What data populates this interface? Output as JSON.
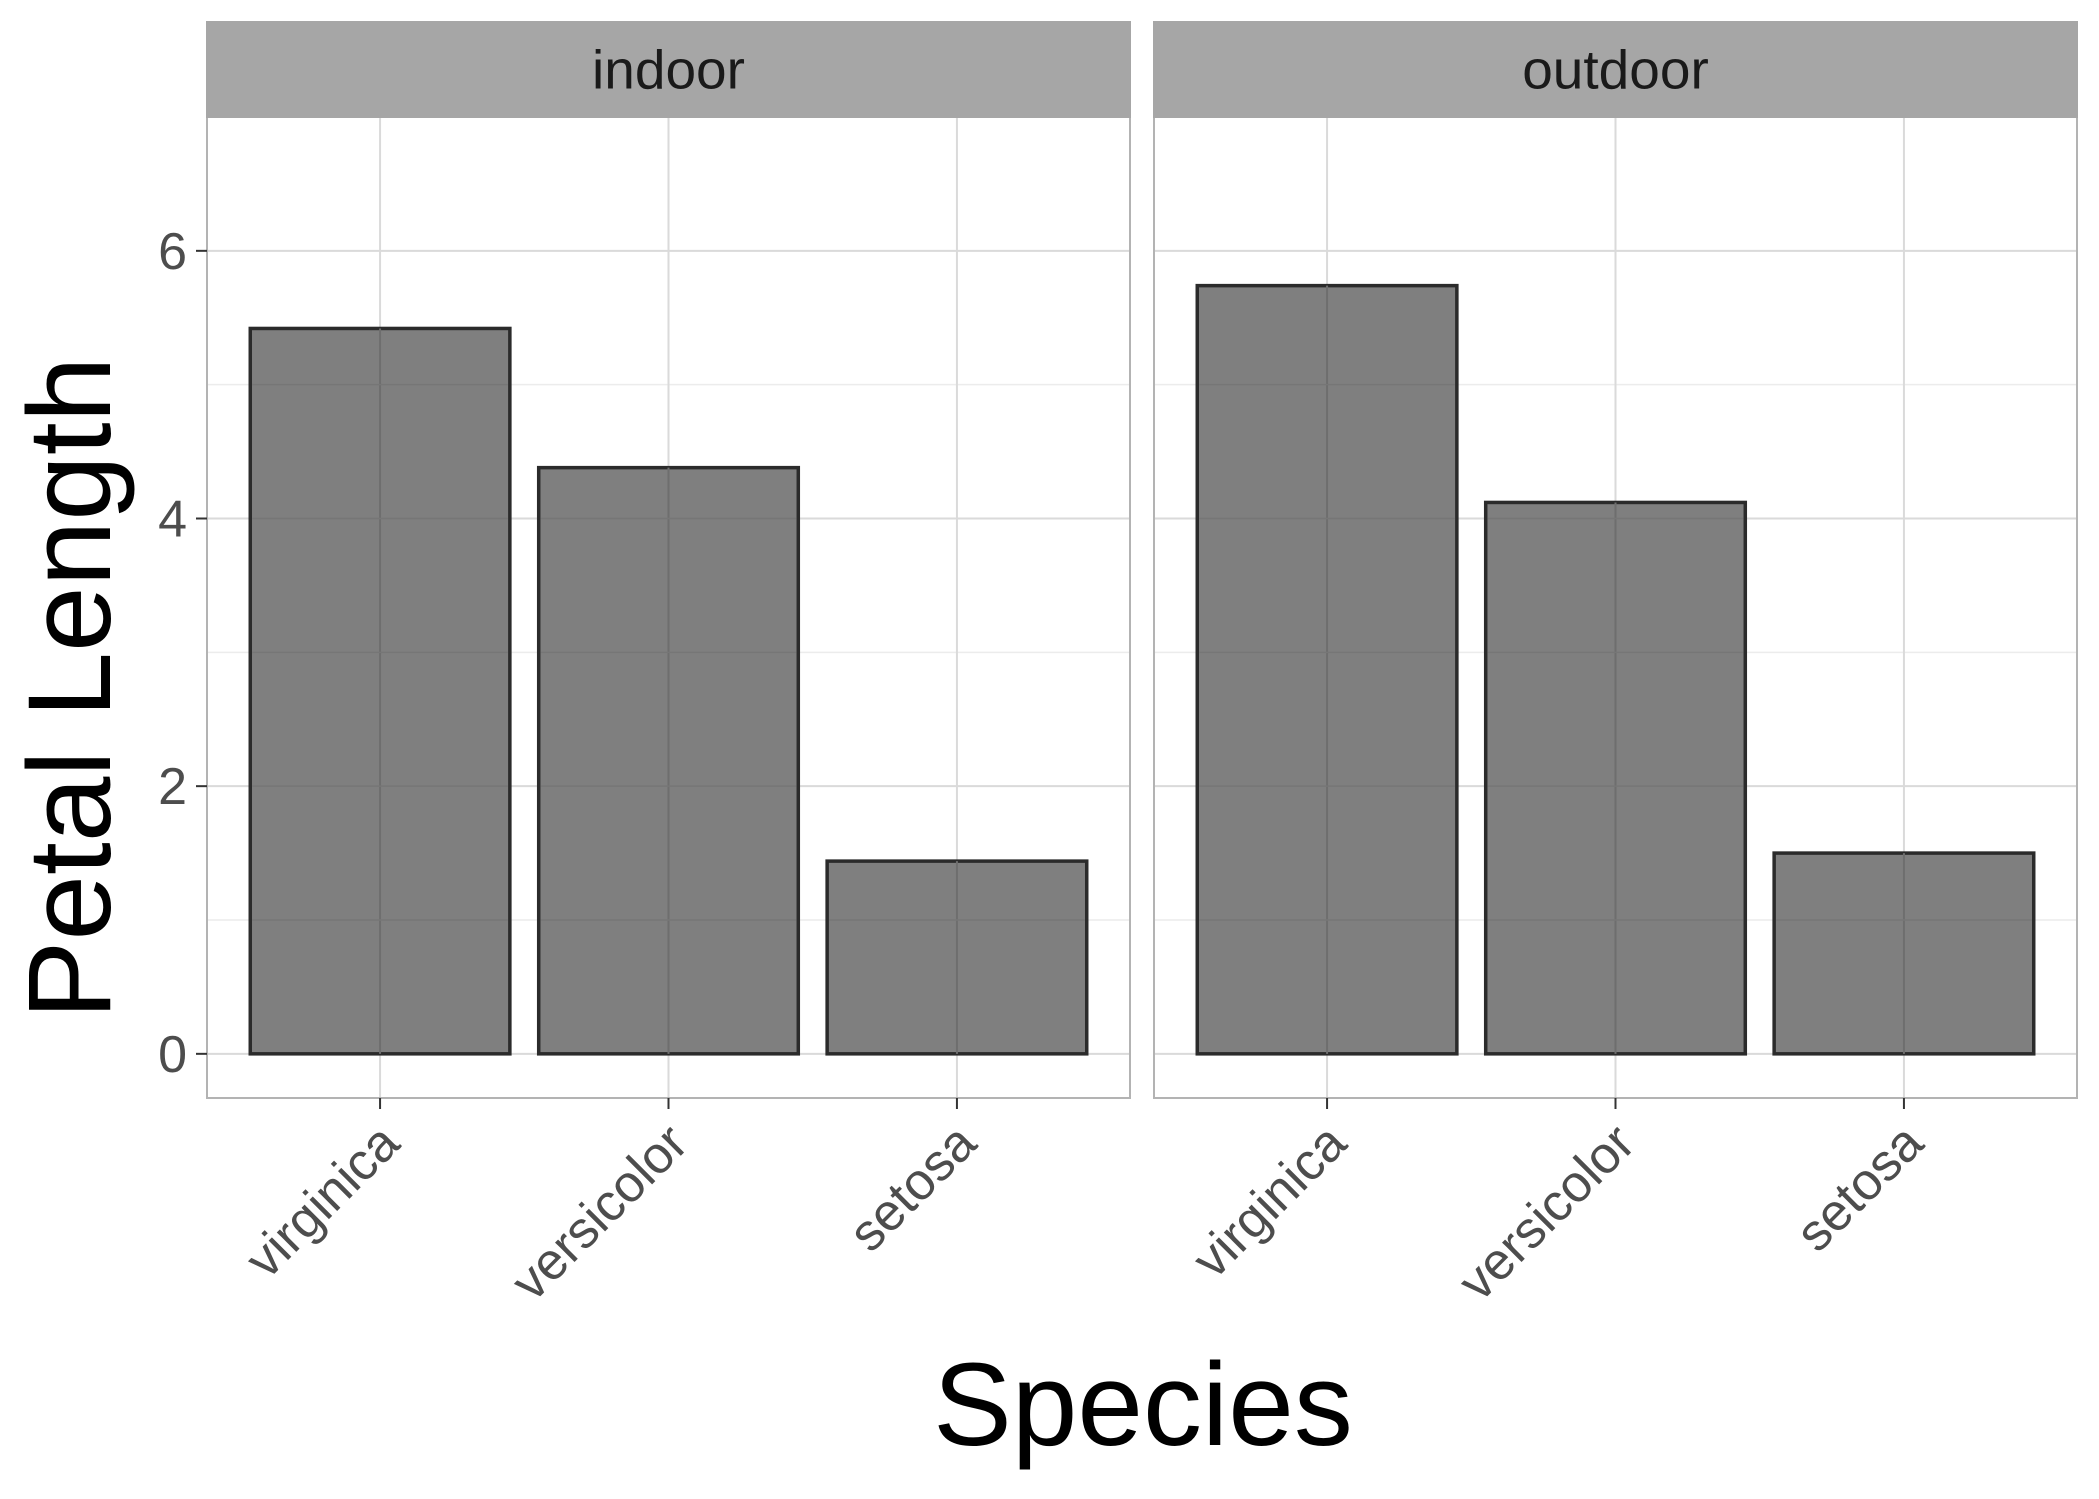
{
  "chart_data": {
    "type": "bar",
    "xlabel": "Species",
    "ylabel": "Petal Length",
    "ylim": [
      -0.33,
      7.0
    ],
    "yticks": [
      0,
      2,
      4,
      6
    ],
    "categories": [
      "virginica",
      "versicolor",
      "setosa"
    ],
    "grid": true,
    "bar_color": "#7f7f7f",
    "bar_outline_color": "#2b2b2b",
    "strip_color": "#a6a6a6",
    "panels": [
      {
        "label": "indoor",
        "values": [
          5.42,
          4.38,
          1.44
        ]
      },
      {
        "label": "outdoor",
        "values": [
          5.74,
          4.12,
          1.5
        ]
      }
    ]
  }
}
